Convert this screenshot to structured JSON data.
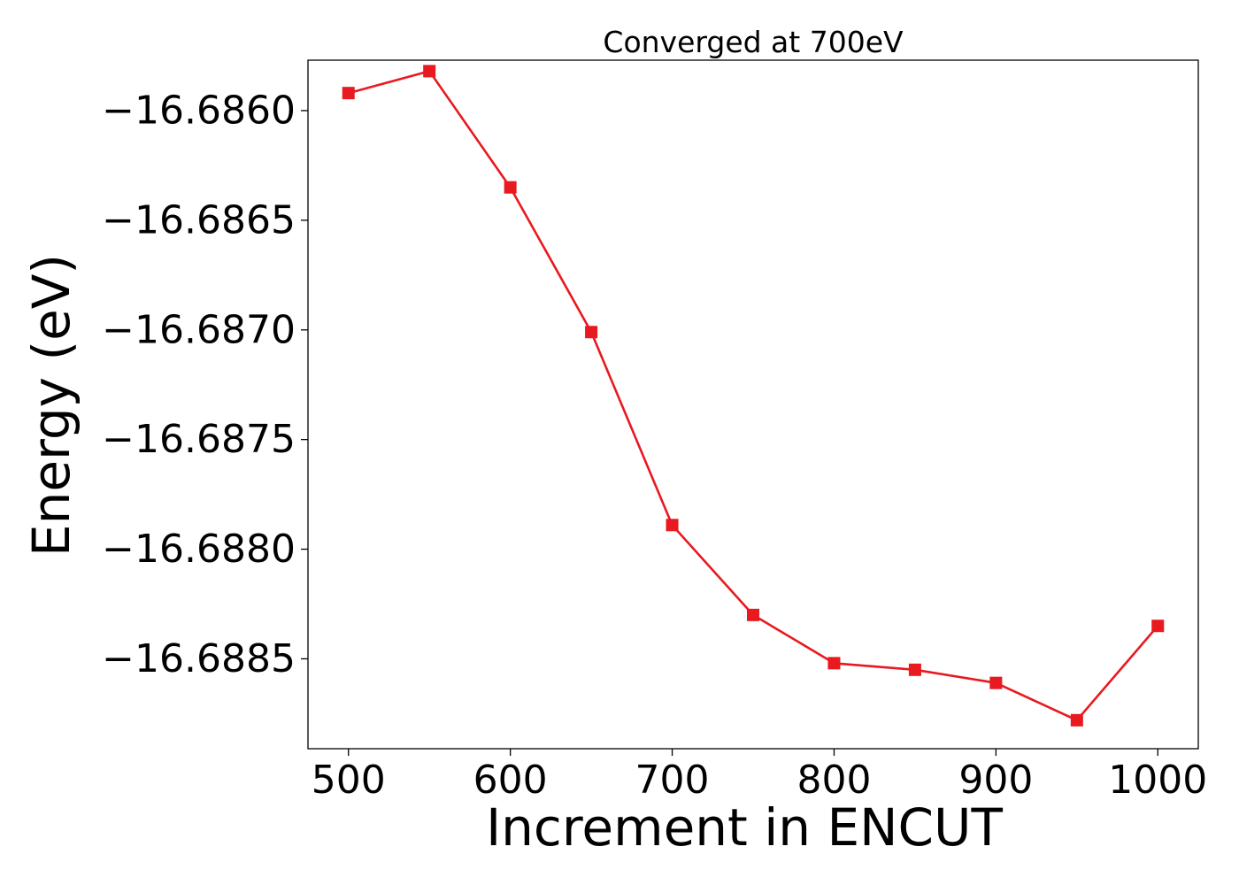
{
  "chart_data": {
    "type": "line",
    "title": "Converged at 700eV",
    "xlabel": "Increment in ENCUT",
    "ylabel": "Energy (eV)",
    "x": [
      500,
      550,
      600,
      650,
      700,
      750,
      800,
      850,
      900,
      950,
      1000
    ],
    "series": [
      {
        "values": [
          -16.68592,
          -16.68582,
          -16.68635,
          -16.68701,
          -16.68789,
          -16.6883,
          -16.68852,
          -16.68855,
          -16.68861,
          -16.68878,
          -16.68835
        ],
        "color": "#e8191f",
        "marker": "square"
      }
    ],
    "xticks": [
      500,
      600,
      700,
      800,
      900,
      1000
    ],
    "xtick_labels": [
      "500",
      "600",
      "700",
      "800",
      "900",
      "1000"
    ],
    "yticks": [
      -16.686,
      -16.6865,
      -16.687,
      -16.6875,
      -16.688,
      -16.6885
    ],
    "ytick_labels": [
      "−16.6860",
      "−16.6865",
      "−16.6870",
      "−16.6875",
      "−16.6880",
      "−16.6885"
    ],
    "xlim": [
      475,
      1025
    ],
    "ylim": [
      -16.68891,
      -16.68577
    ],
    "grid": false,
    "legend": "none"
  }
}
